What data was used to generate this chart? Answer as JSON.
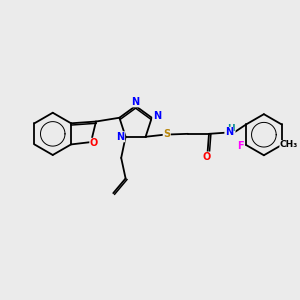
{
  "background_color": "#ebebeb",
  "bond_color": "#000000",
  "atom_colors": {
    "N": "#0000ff",
    "O": "#ff0000",
    "S": "#b8860b",
    "F": "#ff00ff",
    "NH": "#008b8b",
    "C": "#000000"
  },
  "font_size": 7.0,
  "lw": 1.3
}
